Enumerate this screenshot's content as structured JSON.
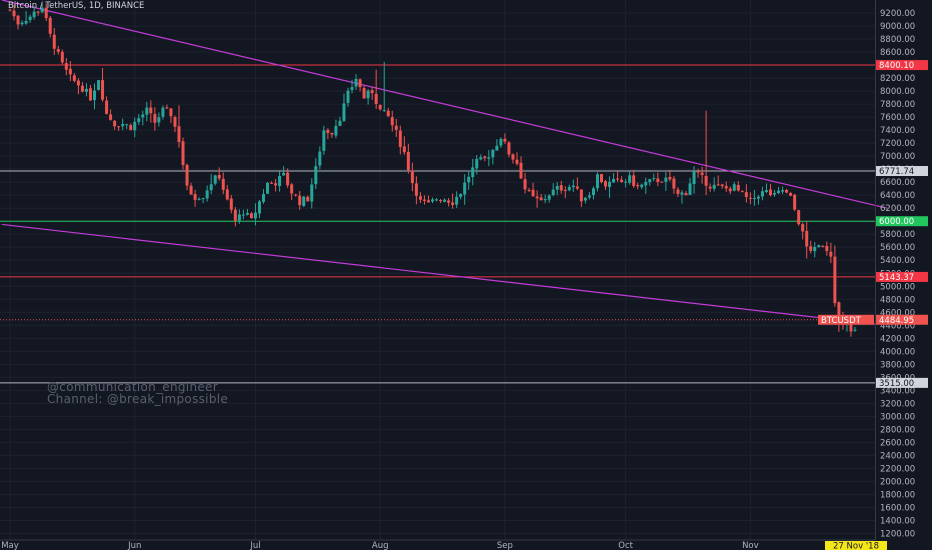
{
  "header": {
    "title": "Bitcoin / TetherUS, 1D, BINANCE"
  },
  "watermark": {
    "line1": "@communication_engineer",
    "line2": "Channel: @break_impossible"
  },
  "chart_data": {
    "type": "candlestick",
    "symbol": "BTCUSDT",
    "interval": "1D",
    "exchange": "BINANCE",
    "ylim": [
      1100,
      9400
    ],
    "y_ticks": [
      "9200.00",
      "9000.00",
      "8800.00",
      "8600.00",
      "8400.00",
      "8200.00",
      "8000.00",
      "7800.00",
      "7600.00",
      "7400.00",
      "7200.00",
      "7000.00",
      "6800.00",
      "6600.00",
      "6400.00",
      "6200.00",
      "6000.00",
      "5800.00",
      "5600.00",
      "5400.00",
      "5200.00",
      "5000.00",
      "4800.00",
      "4600.00",
      "4400.00",
      "4200.00",
      "4000.00",
      "3800.00",
      "3600.00",
      "3400.00",
      "3200.00",
      "3000.00",
      "2800.00",
      "2600.00",
      "2400.00",
      "2200.00",
      "2000.00",
      "1800.00",
      "1600.00",
      "1400.00",
      "1200.00"
    ],
    "x_tick_labels": [
      "May",
      "Jun",
      "Jul",
      "Aug",
      "Sep",
      "Oct",
      "Nov"
    ],
    "x_tick_days": [
      0,
      31,
      61,
      92,
      123,
      153,
      184
    ],
    "current_date_label": "27 Nov '18",
    "current_day": 210,
    "price_key_points": [
      [
        0,
        9250
      ],
      [
        2,
        9050
      ],
      [
        5,
        9150
      ],
      [
        8,
        9300
      ],
      [
        10,
        8850
      ],
      [
        13,
        8400
      ],
      [
        15,
        8200
      ],
      [
        18,
        8050
      ],
      [
        20,
        7900
      ],
      [
        22,
        8200
      ],
      [
        24,
        7650
      ],
      [
        26,
        7500
      ],
      [
        28,
        7500
      ],
      [
        30,
        7450
      ],
      [
        32,
        7580
      ],
      [
        34,
        7700
      ],
      [
        36,
        7520
      ],
      [
        38,
        7700
      ],
      [
        40,
        7650
      ],
      [
        42,
        7250
      ],
      [
        44,
        6500
      ],
      [
        46,
        6380
      ],
      [
        48,
        6400
      ],
      [
        50,
        6600
      ],
      [
        52,
        6700
      ],
      [
        54,
        6300
      ],
      [
        56,
        6000
      ],
      [
        58,
        6150
      ],
      [
        60,
        6000
      ],
      [
        62,
        6300
      ],
      [
        64,
        6580
      ],
      [
        66,
        6600
      ],
      [
        68,
        6700
      ],
      [
        70,
        6450
      ],
      [
        72,
        6300
      ],
      [
        74,
        6350
      ],
      [
        76,
        6800
      ],
      [
        78,
        7400
      ],
      [
        80,
        7380
      ],
      [
        82,
        7600
      ],
      [
        84,
        7950
      ],
      [
        86,
        8200
      ],
      [
        88,
        7900
      ],
      [
        90,
        8000
      ],
      [
        92,
        7700
      ],
      [
        94,
        7600
      ],
      [
        96,
        7350
      ],
      [
        98,
        7050
      ],
      [
        100,
        6600
      ],
      [
        102,
        6300
      ],
      [
        104,
        6250
      ],
      [
        106,
        6350
      ],
      [
        108,
        6350
      ],
      [
        110,
        6300
      ],
      [
        112,
        6450
      ],
      [
        114,
        6700
      ],
      [
        116,
        6900
      ],
      [
        118,
        6950
      ],
      [
        120,
        7100
      ],
      [
        122,
        7300
      ],
      [
        124,
        7050
      ],
      [
        126,
        6900
      ],
      [
        128,
        6500
      ],
      [
        130,
        6350
      ],
      [
        132,
        6300
      ],
      [
        134,
        6420
      ],
      [
        136,
        6500
      ],
      [
        138,
        6520
      ],
      [
        140,
        6550
      ],
      [
        142,
        6350
      ],
      [
        144,
        6420
      ],
      [
        146,
        6700
      ],
      [
        148,
        6560
      ],
      [
        150,
        6600
      ],
      [
        152,
        6600
      ],
      [
        154,
        6650
      ],
      [
        156,
        6520
      ],
      [
        158,
        6580
      ],
      [
        160,
        6620
      ],
      [
        162,
        6650
      ],
      [
        164,
        6600
      ],
      [
        166,
        6400
      ],
      [
        168,
        6450
      ],
      [
        170,
        6750
      ],
      [
        172,
        6650
      ],
      [
        174,
        6550
      ],
      [
        176,
        6520
      ],
      [
        178,
        6500
      ],
      [
        180,
        6520
      ],
      [
        182,
        6400
      ],
      [
        184,
        6300
      ],
      [
        186,
        6420
      ],
      [
        188,
        6450
      ],
      [
        190,
        6380
      ],
      [
        192,
        6480
      ],
      [
        194,
        6350
      ],
      [
        196,
        6000
      ],
      [
        198,
        5600
      ],
      [
        200,
        5550
      ],
      [
        202,
        5650
      ],
      [
        204,
        5500
      ],
      [
        205,
        4800
      ],
      [
        206,
        4500
      ],
      [
        207,
        4400
      ],
      [
        208,
        4450
      ],
      [
        209,
        4300
      ],
      [
        210,
        4300
      ]
    ],
    "wick_spikes": [
      [
        173,
        7700
      ],
      [
        42,
        7780
      ],
      [
        93,
        8450
      ],
      [
        91,
        8330
      ],
      [
        206,
        4300
      ]
    ],
    "horizontal_levels": [
      {
        "price": 8400.1,
        "label": "8400.10",
        "color": "#f23645"
      },
      {
        "price": 6771.74,
        "label": "6771.74",
        "color": "#b2b5be"
      },
      {
        "price": 6000.0,
        "label": "6000.00",
        "color": "#22c55e"
      },
      {
        "price": 5143.37,
        "label": "5143.37",
        "color": "#f23645"
      },
      {
        "price": 3515.0,
        "label": "3515.00",
        "color": "#b2b5be"
      }
    ],
    "current_price": {
      "symbol": "BTCUSDT",
      "value": "4484.95",
      "price": 4484.95,
      "color": "#ef5350"
    },
    "trendlines": [
      {
        "from": [
          -2,
          9400
        ],
        "to": [
          218,
          6200
        ],
        "color": "#c43bd9"
      },
      {
        "from": [
          -2,
          5950
        ],
        "to": [
          215,
          4420
        ],
        "color": "#c43bd9"
      }
    ],
    "colors": {
      "background": "#131722",
      "up": "#26a69a",
      "down": "#ef5350",
      "grid": "#1e2230",
      "axis_text": "#b2b5be",
      "date_badge": "#f5e61a"
    }
  }
}
